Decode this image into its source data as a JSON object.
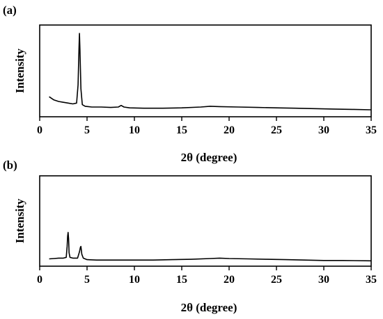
{
  "chart_data": [
    {
      "type": "line",
      "panel_label": "(a)",
      "xlabel": "2θ (degree)",
      "ylabel": "Intensity",
      "xlim": [
        0,
        35
      ],
      "xticks": [
        0,
        5,
        10,
        15,
        20,
        25,
        30,
        35
      ],
      "yticks_shown": false,
      "series": [
        {
          "x": [
            1.0,
            1.5,
            2.0,
            2.5,
            3.0,
            3.5,
            3.9,
            4.05,
            4.15,
            4.2,
            4.25,
            4.35,
            4.5,
            4.8,
            5.5,
            6.5,
            7.5,
            8.3,
            8.6,
            8.9,
            9.5,
            11,
            13,
            15,
            17,
            18,
            19,
            21,
            23,
            25,
            27,
            29,
            31,
            33,
            35
          ],
          "y": [
            0.2,
            0.16,
            0.14,
            0.13,
            0.12,
            0.11,
            0.12,
            0.35,
            0.8,
            1.0,
            0.8,
            0.3,
            0.1,
            0.08,
            0.07,
            0.07,
            0.065,
            0.07,
            0.09,
            0.07,
            0.06,
            0.055,
            0.055,
            0.06,
            0.07,
            0.08,
            0.075,
            0.07,
            0.065,
            0.06,
            0.055,
            0.05,
            0.045,
            0.04,
            0.035
          ]
        }
      ]
    },
    {
      "type": "line",
      "panel_label": "(b)",
      "xlabel": "2θ (degree)",
      "ylabel": "Intensity",
      "xlim": [
        0,
        35
      ],
      "xticks": [
        0,
        5,
        10,
        15,
        20,
        25,
        30,
        35
      ],
      "yticks_shown": false,
      "series": [
        {
          "x": [
            1.0,
            1.5,
            2.0,
            2.5,
            2.8,
            2.9,
            2.95,
            3.0,
            3.05,
            3.1,
            3.2,
            3.5,
            4.0,
            4.2,
            4.3,
            4.35,
            4.45,
            4.6,
            5.0,
            6,
            8,
            10,
            12,
            14,
            16,
            18,
            19,
            20,
            22,
            24,
            26,
            28,
            30,
            32,
            35
          ],
          "y": [
            0.04,
            0.045,
            0.05,
            0.05,
            0.06,
            0.2,
            0.33,
            0.38,
            0.3,
            0.12,
            0.06,
            0.05,
            0.05,
            0.13,
            0.19,
            0.2,
            0.1,
            0.05,
            0.03,
            0.025,
            0.025,
            0.025,
            0.025,
            0.03,
            0.035,
            0.045,
            0.05,
            0.045,
            0.04,
            0.035,
            0.03,
            0.025,
            0.02,
            0.02,
            0.015
          ]
        }
      ]
    }
  ]
}
